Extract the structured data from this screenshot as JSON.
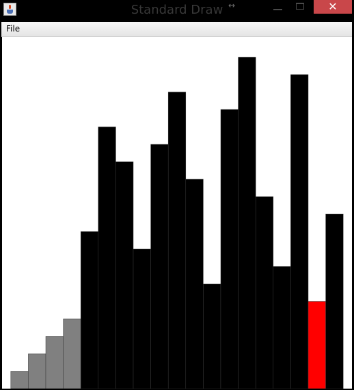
{
  "window": {
    "title": "Standard Draw",
    "icon": "java-cup-icon",
    "resize_glyph": "↔",
    "close_glyph": "✕"
  },
  "menu": {
    "items": [
      {
        "label": "File"
      }
    ]
  },
  "colors": {
    "bar": "#000000",
    "sorted": "#808080",
    "highlight": "#ff0000",
    "background": "#ffffff"
  },
  "chart_data": {
    "type": "bar",
    "values": [
      0.05,
      0.1,
      0.15,
      0.2,
      0.45,
      0.75,
      0.65,
      0.4,
      0.7,
      0.85,
      0.6,
      0.3,
      0.8,
      0.95,
      0.55,
      0.35,
      0.9,
      0.25,
      0.5
    ],
    "bar_states": [
      "sorted",
      "sorted",
      "sorted",
      "sorted",
      "normal",
      "normal",
      "normal",
      "normal",
      "normal",
      "normal",
      "normal",
      "normal",
      "normal",
      "normal",
      "normal",
      "normal",
      "normal",
      "highlight",
      "normal"
    ],
    "ylim": [
      0,
      1
    ]
  }
}
